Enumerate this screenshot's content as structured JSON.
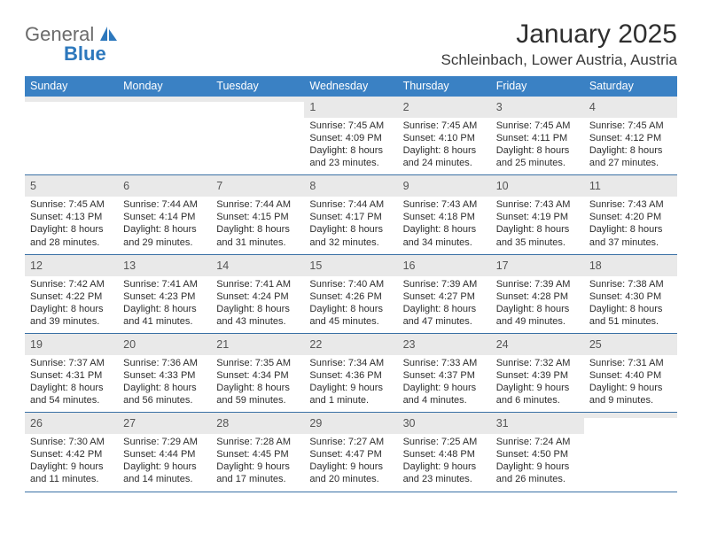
{
  "logo": {
    "text1": "General",
    "text2": "Blue"
  },
  "title": "January 2025",
  "subtitle": "Schleinbach, Lower Austria, Austria",
  "day_headers": [
    "Sunday",
    "Monday",
    "Tuesday",
    "Wednesday",
    "Thursday",
    "Friday",
    "Saturday"
  ],
  "colors": {
    "header_bg": "#3a81c4",
    "header_text": "#ffffff",
    "daynum_bg": "#e9e9e9",
    "week_border": "#3a70a5",
    "logo_gray": "#6b6b6b",
    "logo_blue": "#2d78bd"
  },
  "weeks": [
    [
      {
        "day": "",
        "sunrise": "",
        "sunset": "",
        "daylight1": "",
        "daylight2": ""
      },
      {
        "day": "",
        "sunrise": "",
        "sunset": "",
        "daylight1": "",
        "daylight2": ""
      },
      {
        "day": "",
        "sunrise": "",
        "sunset": "",
        "daylight1": "",
        "daylight2": ""
      },
      {
        "day": "1",
        "sunrise": "Sunrise: 7:45 AM",
        "sunset": "Sunset: 4:09 PM",
        "daylight1": "Daylight: 8 hours",
        "daylight2": "and 23 minutes."
      },
      {
        "day": "2",
        "sunrise": "Sunrise: 7:45 AM",
        "sunset": "Sunset: 4:10 PM",
        "daylight1": "Daylight: 8 hours",
        "daylight2": "and 24 minutes."
      },
      {
        "day": "3",
        "sunrise": "Sunrise: 7:45 AM",
        "sunset": "Sunset: 4:11 PM",
        "daylight1": "Daylight: 8 hours",
        "daylight2": "and 25 minutes."
      },
      {
        "day": "4",
        "sunrise": "Sunrise: 7:45 AM",
        "sunset": "Sunset: 4:12 PM",
        "daylight1": "Daylight: 8 hours",
        "daylight2": "and 27 minutes."
      }
    ],
    [
      {
        "day": "5",
        "sunrise": "Sunrise: 7:45 AM",
        "sunset": "Sunset: 4:13 PM",
        "daylight1": "Daylight: 8 hours",
        "daylight2": "and 28 minutes."
      },
      {
        "day": "6",
        "sunrise": "Sunrise: 7:44 AM",
        "sunset": "Sunset: 4:14 PM",
        "daylight1": "Daylight: 8 hours",
        "daylight2": "and 29 minutes."
      },
      {
        "day": "7",
        "sunrise": "Sunrise: 7:44 AM",
        "sunset": "Sunset: 4:15 PM",
        "daylight1": "Daylight: 8 hours",
        "daylight2": "and 31 minutes."
      },
      {
        "day": "8",
        "sunrise": "Sunrise: 7:44 AM",
        "sunset": "Sunset: 4:17 PM",
        "daylight1": "Daylight: 8 hours",
        "daylight2": "and 32 minutes."
      },
      {
        "day": "9",
        "sunrise": "Sunrise: 7:43 AM",
        "sunset": "Sunset: 4:18 PM",
        "daylight1": "Daylight: 8 hours",
        "daylight2": "and 34 minutes."
      },
      {
        "day": "10",
        "sunrise": "Sunrise: 7:43 AM",
        "sunset": "Sunset: 4:19 PM",
        "daylight1": "Daylight: 8 hours",
        "daylight2": "and 35 minutes."
      },
      {
        "day": "11",
        "sunrise": "Sunrise: 7:43 AM",
        "sunset": "Sunset: 4:20 PM",
        "daylight1": "Daylight: 8 hours",
        "daylight2": "and 37 minutes."
      }
    ],
    [
      {
        "day": "12",
        "sunrise": "Sunrise: 7:42 AM",
        "sunset": "Sunset: 4:22 PM",
        "daylight1": "Daylight: 8 hours",
        "daylight2": "and 39 minutes."
      },
      {
        "day": "13",
        "sunrise": "Sunrise: 7:41 AM",
        "sunset": "Sunset: 4:23 PM",
        "daylight1": "Daylight: 8 hours",
        "daylight2": "and 41 minutes."
      },
      {
        "day": "14",
        "sunrise": "Sunrise: 7:41 AM",
        "sunset": "Sunset: 4:24 PM",
        "daylight1": "Daylight: 8 hours",
        "daylight2": "and 43 minutes."
      },
      {
        "day": "15",
        "sunrise": "Sunrise: 7:40 AM",
        "sunset": "Sunset: 4:26 PM",
        "daylight1": "Daylight: 8 hours",
        "daylight2": "and 45 minutes."
      },
      {
        "day": "16",
        "sunrise": "Sunrise: 7:39 AM",
        "sunset": "Sunset: 4:27 PM",
        "daylight1": "Daylight: 8 hours",
        "daylight2": "and 47 minutes."
      },
      {
        "day": "17",
        "sunrise": "Sunrise: 7:39 AM",
        "sunset": "Sunset: 4:28 PM",
        "daylight1": "Daylight: 8 hours",
        "daylight2": "and 49 minutes."
      },
      {
        "day": "18",
        "sunrise": "Sunrise: 7:38 AM",
        "sunset": "Sunset: 4:30 PM",
        "daylight1": "Daylight: 8 hours",
        "daylight2": "and 51 minutes."
      }
    ],
    [
      {
        "day": "19",
        "sunrise": "Sunrise: 7:37 AM",
        "sunset": "Sunset: 4:31 PM",
        "daylight1": "Daylight: 8 hours",
        "daylight2": "and 54 minutes."
      },
      {
        "day": "20",
        "sunrise": "Sunrise: 7:36 AM",
        "sunset": "Sunset: 4:33 PM",
        "daylight1": "Daylight: 8 hours",
        "daylight2": "and 56 minutes."
      },
      {
        "day": "21",
        "sunrise": "Sunrise: 7:35 AM",
        "sunset": "Sunset: 4:34 PM",
        "daylight1": "Daylight: 8 hours",
        "daylight2": "and 59 minutes."
      },
      {
        "day": "22",
        "sunrise": "Sunrise: 7:34 AM",
        "sunset": "Sunset: 4:36 PM",
        "daylight1": "Daylight: 9 hours",
        "daylight2": "and 1 minute."
      },
      {
        "day": "23",
        "sunrise": "Sunrise: 7:33 AM",
        "sunset": "Sunset: 4:37 PM",
        "daylight1": "Daylight: 9 hours",
        "daylight2": "and 4 minutes."
      },
      {
        "day": "24",
        "sunrise": "Sunrise: 7:32 AM",
        "sunset": "Sunset: 4:39 PM",
        "daylight1": "Daylight: 9 hours",
        "daylight2": "and 6 minutes."
      },
      {
        "day": "25",
        "sunrise": "Sunrise: 7:31 AM",
        "sunset": "Sunset: 4:40 PM",
        "daylight1": "Daylight: 9 hours",
        "daylight2": "and 9 minutes."
      }
    ],
    [
      {
        "day": "26",
        "sunrise": "Sunrise: 7:30 AM",
        "sunset": "Sunset: 4:42 PM",
        "daylight1": "Daylight: 9 hours",
        "daylight2": "and 11 minutes."
      },
      {
        "day": "27",
        "sunrise": "Sunrise: 7:29 AM",
        "sunset": "Sunset: 4:44 PM",
        "daylight1": "Daylight: 9 hours",
        "daylight2": "and 14 minutes."
      },
      {
        "day": "28",
        "sunrise": "Sunrise: 7:28 AM",
        "sunset": "Sunset: 4:45 PM",
        "daylight1": "Daylight: 9 hours",
        "daylight2": "and 17 minutes."
      },
      {
        "day": "29",
        "sunrise": "Sunrise: 7:27 AM",
        "sunset": "Sunset: 4:47 PM",
        "daylight1": "Daylight: 9 hours",
        "daylight2": "and 20 minutes."
      },
      {
        "day": "30",
        "sunrise": "Sunrise: 7:25 AM",
        "sunset": "Sunset: 4:48 PM",
        "daylight1": "Daylight: 9 hours",
        "daylight2": "and 23 minutes."
      },
      {
        "day": "31",
        "sunrise": "Sunrise: 7:24 AM",
        "sunset": "Sunset: 4:50 PM",
        "daylight1": "Daylight: 9 hours",
        "daylight2": "and 26 minutes."
      },
      {
        "day": "",
        "sunrise": "",
        "sunset": "",
        "daylight1": "",
        "daylight2": ""
      }
    ]
  ]
}
